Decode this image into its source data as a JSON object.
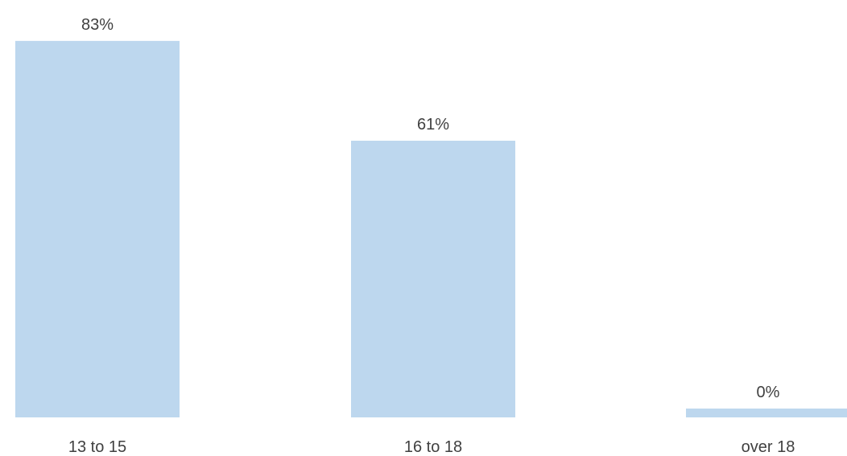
{
  "chart_data": {
    "type": "bar",
    "categories": [
      "13 to 15",
      "16 to 18",
      "over 18"
    ],
    "values": [
      83,
      61,
      0
    ],
    "data_labels": [
      "83%",
      "61%",
      "0%"
    ],
    "title": "",
    "xlabel": "",
    "ylabel": "",
    "ylim": [
      0,
      100
    ],
    "grid": false,
    "legend": "none",
    "colors": {
      "bar": "#bdd7ee",
      "text": "#404040"
    }
  }
}
